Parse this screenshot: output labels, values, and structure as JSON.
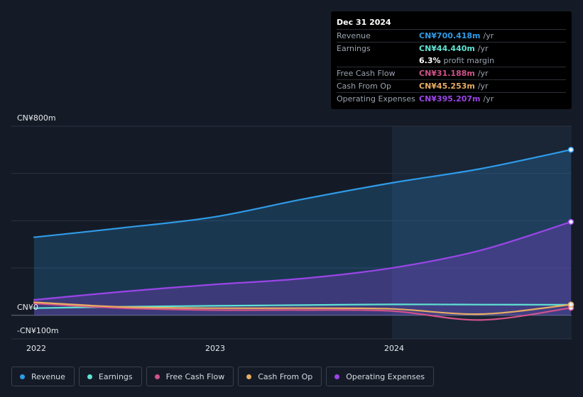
{
  "tooltip": {
    "date": "Dec 31 2024",
    "rows": [
      {
        "label": "Revenue",
        "value": "CN¥700.418m",
        "unit": "/yr",
        "color": "#2f9be8"
      },
      {
        "label": "Earnings",
        "value": "CN¥44.440m",
        "unit": "/yr",
        "color": "#5fe3d3"
      },
      {
        "label": "",
        "value": "6.3%",
        "unit": "profit margin",
        "color": "#ffffff"
      },
      {
        "label": "Free Cash Flow",
        "value": "CN¥31.188m",
        "unit": "/yr",
        "color": "#d2528a"
      },
      {
        "label": "Cash From Op",
        "value": "CN¥45.253m",
        "unit": "/yr",
        "color": "#e8ac63"
      },
      {
        "label": "Operating Expenses",
        "value": "CN¥395.207m",
        "unit": "/yr",
        "color": "#9b45e8"
      }
    ]
  },
  "axis": {
    "y_top_label": "CN¥800m",
    "y_zero_label": "CN¥0",
    "y_neg_label": "-CN¥100m",
    "x_labels": [
      "2022",
      "2023",
      "2024"
    ]
  },
  "legend": [
    {
      "label": "Revenue",
      "color": "#2f9be8"
    },
    {
      "label": "Earnings",
      "color": "#5fe3d3"
    },
    {
      "label": "Free Cash Flow",
      "color": "#d2528a"
    },
    {
      "label": "Cash From Op",
      "color": "#e8ac63"
    },
    {
      "label": "Operating Expenses",
      "color": "#9b45e8"
    }
  ],
  "chart_data": {
    "type": "line",
    "ylim": [
      -100,
      800
    ],
    "x_range": [
      "2021-12-31",
      "2024-12-31"
    ],
    "x_ticks": [
      "2022",
      "2023",
      "2024"
    ],
    "series": [
      {
        "name": "Revenue",
        "color": "#2f9be8",
        "x": [
          "2021-12-31",
          "2022-06-30",
          "2022-12-31",
          "2023-06-30",
          "2023-12-31",
          "2024-06-30",
          "2024-12-31"
        ],
        "values": [
          330,
          370,
          415,
          490,
          560,
          620,
          700.418
        ]
      },
      {
        "name": "Operating Expenses",
        "color": "#9b45e8",
        "x": [
          "2021-12-31",
          "2022-06-30",
          "2022-12-31",
          "2023-06-30",
          "2023-12-31",
          "2024-06-30",
          "2024-12-31"
        ],
        "values": [
          65,
          100,
          130,
          155,
          200,
          275,
          395.207
        ]
      },
      {
        "name": "Earnings",
        "color": "#5fe3d3",
        "x": [
          "2021-12-31",
          "2022-06-30",
          "2022-12-31",
          "2023-06-30",
          "2023-12-31",
          "2024-06-30",
          "2024-12-31"
        ],
        "values": [
          30,
          36,
          40,
          43,
          46,
          45,
          44.44
        ]
      },
      {
        "name": "Free Cash Flow",
        "color": "#d2528a",
        "x": [
          "2021-12-31",
          "2022-06-30",
          "2022-12-31",
          "2023-06-30",
          "2023-12-31",
          "2024-06-30",
          "2024-12-31"
        ],
        "values": [
          50,
          30,
          22,
          22,
          18,
          -20,
          31.188
        ]
      },
      {
        "name": "Cash From Op",
        "color": "#e8ac63",
        "x": [
          "2021-12-31",
          "2022-06-30",
          "2022-12-31",
          "2023-06-30",
          "2023-12-31",
          "2024-06-30",
          "2024-12-31"
        ],
        "values": [
          55,
          35,
          30,
          30,
          27,
          5,
          45.253
        ]
      }
    ]
  }
}
